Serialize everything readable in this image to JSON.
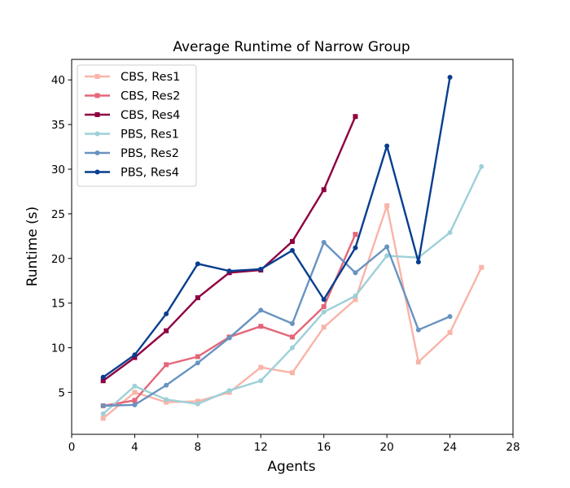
{
  "chart_data": {
    "type": "line",
    "title": "Average Runtime of Narrow Group",
    "xlabel": "Agents",
    "ylabel": "Runtime (s)",
    "xlim": [
      0,
      28
    ],
    "ylim": [
      0.3,
      42.3
    ],
    "xticks": [
      0,
      4,
      8,
      12,
      16,
      20,
      24,
      28
    ],
    "yticks": [
      5,
      10,
      15,
      20,
      25,
      30,
      35,
      40
    ],
    "grid": false,
    "legend_position": "top-left",
    "series": [
      {
        "name": "CBS, Res1",
        "color": "#f9b4a8",
        "marker": "square",
        "x": [
          2,
          4,
          6,
          8,
          10,
          12,
          14,
          16,
          18,
          20,
          22,
          24,
          26
        ],
        "y": [
          2.1,
          5.0,
          3.9,
          4.0,
          5.0,
          7.8,
          7.2,
          12.3,
          15.4,
          25.9,
          8.4,
          11.7,
          19.0
        ]
      },
      {
        "name": "CBS, Res2",
        "color": "#e46679",
        "marker": "square",
        "x": [
          2,
          4,
          6,
          8,
          10,
          12,
          14,
          16,
          18
        ],
        "y": [
          3.5,
          4.1,
          8.1,
          9.0,
          11.2,
          12.4,
          11.2,
          14.6,
          22.7
        ]
      },
      {
        "name": "CBS, Res4",
        "color": "#8e0041",
        "marker": "square",
        "x": [
          2,
          4,
          6,
          8,
          10,
          12,
          14,
          16,
          18
        ],
        "y": [
          6.3,
          8.9,
          11.9,
          15.6,
          18.4,
          18.7,
          21.9,
          27.7,
          35.9
        ]
      },
      {
        "name": "PBS, Res1",
        "color": "#9dd0d8",
        "marker": "circle",
        "x": [
          2,
          4,
          6,
          8,
          10,
          12,
          14,
          16,
          18,
          20,
          22,
          24,
          26
        ],
        "y": [
          2.6,
          5.7,
          4.2,
          3.7,
          5.2,
          6.3,
          10.0,
          14.0,
          15.8,
          20.3,
          20.1,
          22.9,
          30.3
        ]
      },
      {
        "name": "PBS, Res2",
        "color": "#6893c0",
        "marker": "circle",
        "x": [
          2,
          4,
          6,
          8,
          10,
          12,
          14,
          16,
          18,
          20,
          22,
          24
        ],
        "y": [
          3.5,
          3.6,
          5.8,
          8.3,
          11.1,
          14.2,
          12.7,
          21.8,
          18.4,
          21.3,
          12.0,
          13.5
        ]
      },
      {
        "name": "PBS, Res4",
        "color": "#083e8f",
        "marker": "circle",
        "x": [
          2,
          4,
          6,
          8,
          10,
          12,
          14,
          16,
          18,
          20,
          22,
          24
        ],
        "y": [
          6.7,
          9.2,
          13.8,
          19.4,
          18.6,
          18.8,
          20.9,
          15.4,
          21.2,
          32.6,
          19.6,
          40.3
        ]
      }
    ]
  }
}
